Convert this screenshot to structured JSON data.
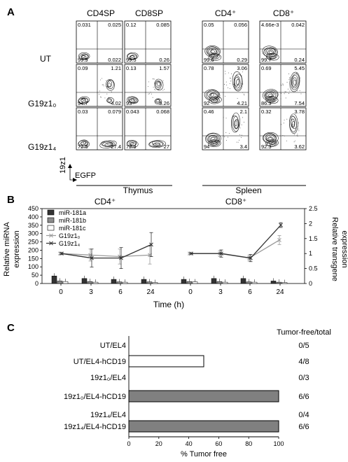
{
  "panelA": {
    "letter": "A",
    "col_headers": [
      "CD4SP",
      "CD8SP",
      "CD4⁺",
      "CD8⁺"
    ],
    "row_labels": [
      "UT",
      "G19z1₀",
      "G19z1₄"
    ],
    "axis_y_label": "19z1",
    "axis_x_label": "EGFP",
    "group_labels": [
      "Thymus",
      "Spleen"
    ],
    "quadrants": [
      [
        [
          "0.031",
          "0.025",
          "99.9",
          "0.022"
        ],
        [
          "0.12",
          "0.085",
          "99.5",
          "0.26"
        ],
        [
          "0.05",
          "0.056",
          "99.6",
          "0.29"
        ],
        [
          "4.66e-3",
          "0.042",
          "99.7",
          "0.24"
        ]
      ],
      [
        [
          "0.09",
          "1.21",
          "94.7",
          "4.02"
        ],
        [
          "0.13",
          "1.57",
          "93",
          "5.26"
        ],
        [
          "0.78",
          "3.06",
          "92",
          "4.21"
        ],
        [
          "0.69",
          "5.45",
          "86.3",
          "7.54"
        ]
      ],
      [
        [
          "0.03",
          "0.079",
          "72.5",
          "27.4"
        ],
        [
          "0.043",
          "0.068",
          "72.9",
          "27"
        ],
        [
          "0.46",
          "2.1",
          "94",
          "3.4"
        ],
        [
          "0.32",
          "3.78",
          "92.3",
          "3.62"
        ]
      ]
    ]
  },
  "panelB": {
    "letter": "B",
    "titles": [
      "CD4⁺",
      "CD8⁺"
    ],
    "ylabel_left": [
      "Relative miRNA",
      "expression"
    ],
    "ylabel_right": [
      "Relative transgene",
      "expression"
    ],
    "xlabel": "Time (h)",
    "left_ticks": [
      "0",
      "50",
      "100",
      "150",
      "200",
      "250",
      "300",
      "350",
      "400",
      "450"
    ],
    "right_ticks": [
      "0",
      "0.5",
      "1",
      "1.5",
      "2",
      "2.5"
    ],
    "x_ticks": [
      "0",
      "3",
      "6",
      "24"
    ],
    "legend": [
      "miR-181a",
      "miR-181b",
      "miR-181c",
      "G19z1₀",
      "G19z1₄"
    ]
  },
  "panelC": {
    "letter": "C",
    "header": "Tumor-free/total",
    "xlabel": "% Tumor free",
    "x_ticks": [
      "0",
      "20",
      "40",
      "60",
      "80",
      "100"
    ],
    "rows": [
      {
        "label": "UT/EL4",
        "value": 0,
        "ratio": "0/5",
        "fill": "#ffffff"
      },
      {
        "label": "UT/EL4-hCD19",
        "value": 50,
        "ratio": "4/8",
        "fill": "#ffffff"
      },
      {
        "label": "19z1₀/EL4",
        "value": 0,
        "ratio": "0/3",
        "fill": "#ffffff"
      },
      {
        "label": "19z1₀/EL4-hCD19",
        "value": 100,
        "ratio": "6/6",
        "fill": "#808080"
      },
      {
        "label": "19z1₄/EL4",
        "value": 0,
        "ratio": "0/4",
        "fill": "#ffffff"
      },
      {
        "label": "19z1₄/EL4-hCD19",
        "value": 100,
        "ratio": "6/6",
        "fill": "#808080"
      }
    ]
  },
  "chart_data": [
    {
      "type": "bar",
      "title": "CD4⁺",
      "categories": [
        "0",
        "3",
        "6",
        "24"
      ],
      "xlabel": "Time (h)",
      "ylabel": "Relative miRNA expression",
      "ylim": [
        0,
        450
      ],
      "series": [
        {
          "name": "miR-181a",
          "axis": "left",
          "color": "#333333",
          "values": [
            45,
            30,
            25,
            25
          ]
        },
        {
          "name": "miR-181b",
          "axis": "left",
          "color": "#8c8c8c",
          "values": [
            15,
            12,
            10,
            10
          ]
        },
        {
          "name": "miR-181c",
          "axis": "left",
          "color": "#ffffff",
          "values": [
            12,
            8,
            8,
            6
          ]
        },
        {
          "name": "G19z1₀",
          "axis": "right",
          "type": "line",
          "color": "#9a9a9a",
          "values": [
            1.0,
            0.95,
            0.9,
            0.95
          ],
          "errors": [
            0.03,
            0.2,
            0.25,
            0.3
          ]
        },
        {
          "name": "G19z1₄",
          "axis": "right",
          "type": "line",
          "color": "#333333",
          "values": [
            1.0,
            0.85,
            0.85,
            1.3
          ],
          "errors": [
            0.03,
            0.3,
            0.35,
            0.4
          ]
        }
      ],
      "y2lim": [
        0,
        2.5
      ],
      "grid": false
    },
    {
      "type": "bar",
      "title": "CD8⁺",
      "categories": [
        "0",
        "3",
        "6",
        "24"
      ],
      "xlabel": "Time (h)",
      "ylabel": "Relative transgene expression",
      "ylim": [
        0,
        450
      ],
      "series": [
        {
          "name": "miR-181a",
          "axis": "left",
          "color": "#333333",
          "values": [
            25,
            30,
            30,
            15
          ]
        },
        {
          "name": "miR-181b",
          "axis": "left",
          "color": "#8c8c8c",
          "values": [
            12,
            12,
            10,
            8
          ]
        },
        {
          "name": "miR-181c",
          "axis": "left",
          "color": "#ffffff",
          "values": [
            10,
            8,
            8,
            6
          ]
        },
        {
          "name": "G19z1₀",
          "axis": "right",
          "type": "line",
          "color": "#9a9a9a",
          "values": [
            1.0,
            1.0,
            0.85,
            1.45
          ],
          "errors": [
            0.02,
            0.1,
            0.1,
            0.15
          ]
        },
        {
          "name": "G19z1₄",
          "axis": "right",
          "type": "line",
          "color": "#333333",
          "values": [
            1.0,
            1.0,
            0.85,
            1.95
          ],
          "errors": [
            0.02,
            0.12,
            0.12,
            0.08
          ]
        }
      ],
      "y2lim": [
        0,
        2.5
      ],
      "grid": false
    },
    {
      "type": "bar",
      "orientation": "horizontal",
      "categories": [
        "UT/EL4",
        "UT/EL4-hCD19",
        "19z1₀/EL4",
        "19z1₀/EL4-hCD19",
        "19z1₄/EL4",
        "19z1₄/EL4-hCD19"
      ],
      "values": [
        0,
        50,
        0,
        100,
        0,
        100
      ],
      "xlabel": "% Tumor free",
      "xlim": [
        0,
        100
      ]
    }
  ]
}
